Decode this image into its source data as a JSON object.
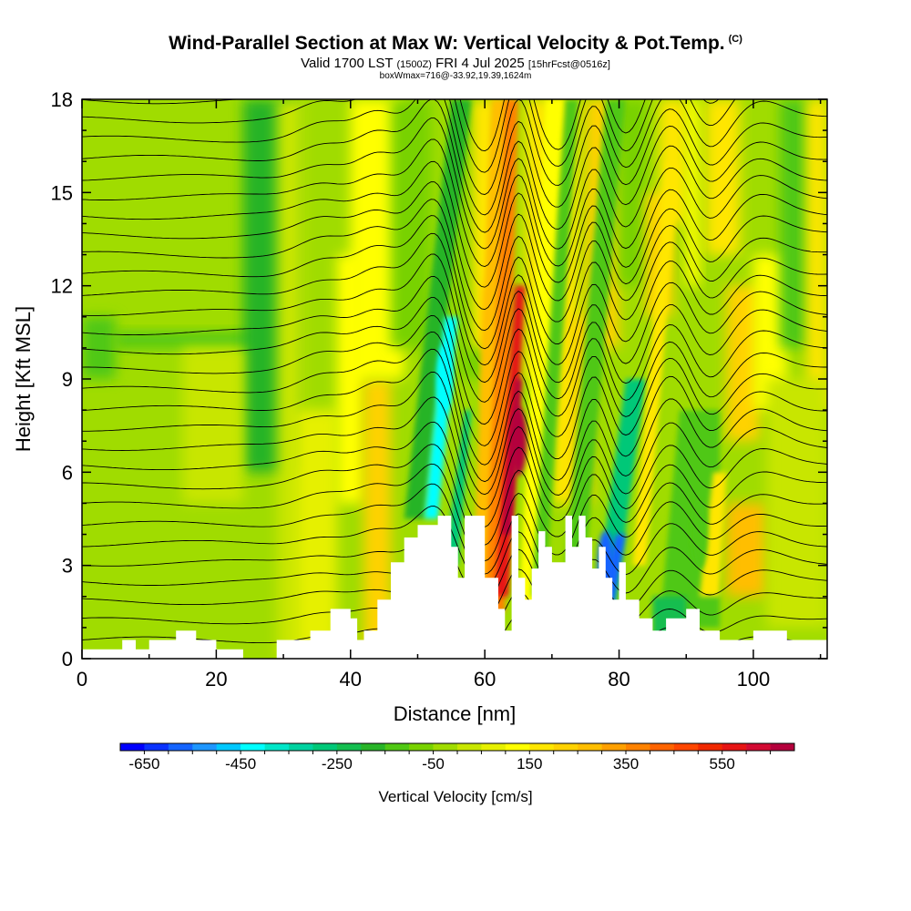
{
  "title": {
    "main": "Wind-Parallel Section at Max W: Vertical Velocity & Pot.Temp.",
    "copyright": "(C)",
    "valid_prefix": "Valid 1700 LST",
    "valid_z": "(1500Z)",
    "valid_date": "FRI 4 Jul 2025",
    "forecast": "[15hrFcst@0516z]",
    "box_info": "boxWmax=716@-33.92,19.39,1624m"
  },
  "chart_data": {
    "type": "heatmap",
    "xlabel": "Distance [nm]",
    "ylabel": "Height [Kft MSL]",
    "xlim": [
      0,
      111
    ],
    "ylim": [
      0,
      18
    ],
    "x_ticks": [
      "0",
      "20",
      "40",
      "60",
      "80",
      "100"
    ],
    "y_ticks": [
      "0",
      "3",
      "6",
      "9",
      "12",
      "15",
      "18"
    ],
    "colorbar": {
      "label": "Vertical Velocity [cm/s]",
      "min": -700,
      "max": 700,
      "step": 50,
      "tick_labels": [
        "-650",
        "-450",
        "-250",
        "-50",
        "150",
        "350",
        "550"
      ],
      "colors": [
        "#0000ff",
        "#0a32ff",
        "#1464ff",
        "#1e96ff",
        "#00c8ff",
        "#00ffff",
        "#00e6c8",
        "#00d2a0",
        "#00c878",
        "#14be50",
        "#28b428",
        "#50c814",
        "#78d200",
        "#a0dc00",
        "#c8e600",
        "#e6f000",
        "#ffff00",
        "#ffe600",
        "#ffd200",
        "#ffbe00",
        "#ffa000",
        "#ff8200",
        "#ff6400",
        "#ff4600",
        "#f02800",
        "#e61414",
        "#d20a32",
        "#b4003c"
      ]
    },
    "updraft_axis_x": [
      63,
      64,
      65,
      66
    ],
    "cores": [
      {
        "x": 65,
        "h": 7,
        "w": 716
      },
      {
        "x": 54,
        "h": 9,
        "w": -450
      },
      {
        "x": 78,
        "h": 3,
        "w": -600
      },
      {
        "x": 92,
        "h": 4,
        "w": -150
      }
    ],
    "terrain": {
      "x": [
        0,
        6,
        6,
        8,
        8,
        10,
        10,
        14,
        14,
        17,
        17,
        20,
        20,
        24,
        24,
        29,
        29,
        34,
        34,
        37,
        37,
        40,
        40,
        41,
        41,
        42,
        42,
        44,
        44,
        46,
        46,
        48,
        48,
        50,
        50,
        53,
        53,
        55,
        55,
        56,
        56,
        57,
        57,
        58,
        58,
        60,
        60,
        62,
        62,
        63,
        63,
        64,
        64,
        65,
        65,
        66,
        66,
        67,
        67,
        68,
        68,
        69,
        69,
        70,
        70,
        72,
        72,
        73,
        73,
        74,
        74,
        75,
        75,
        76,
        76,
        77,
        77,
        78,
        78,
        79,
        79,
        80,
        80,
        81,
        81,
        83,
        83,
        85,
        85,
        87,
        87,
        90,
        90,
        92,
        92,
        95,
        95,
        100,
        100,
        105,
        105,
        111
      ],
      "h": [
        0.3,
        0.3,
        0.6,
        0.6,
        0.3,
        0.3,
        0.6,
        0.6,
        0.9,
        0.9,
        0.6,
        0.6,
        0.3,
        0.3,
        0.0,
        0.0,
        0.6,
        0.6,
        0.9,
        0.9,
        1.6,
        1.6,
        1.3,
        1.3,
        0.6,
        0.6,
        0.9,
        0.9,
        1.9,
        1.9,
        3.1,
        3.1,
        3.9,
        3.9,
        4.3,
        4.3,
        4.6,
        4.6,
        3.6,
        3.6,
        2.6,
        2.6,
        4.6,
        4.6,
        4.6,
        4.6,
        2.6,
        2.6,
        1.6,
        1.6,
        0.9,
        0.9,
        4.6,
        4.6,
        2.6,
        2.6,
        1.9,
        1.9,
        2.9,
        2.9,
        4.1,
        4.1,
        3.6,
        3.6,
        3.1,
        3.1,
        4.6,
        4.6,
        3.6,
        3.6,
        4.6,
        4.6,
        3.9,
        3.9,
        2.9,
        2.9,
        3.6,
        3.6,
        2.6,
        2.6,
        1.9,
        1.9,
        3.1,
        3.1,
        1.9,
        1.9,
        1.3,
        1.3,
        0.9,
        0.9,
        1.3,
        1.3,
        1.6,
        1.6,
        0.9,
        0.9,
        0.6,
        0.6,
        0.9,
        0.9,
        0.6,
        0.6
      ]
    }
  }
}
